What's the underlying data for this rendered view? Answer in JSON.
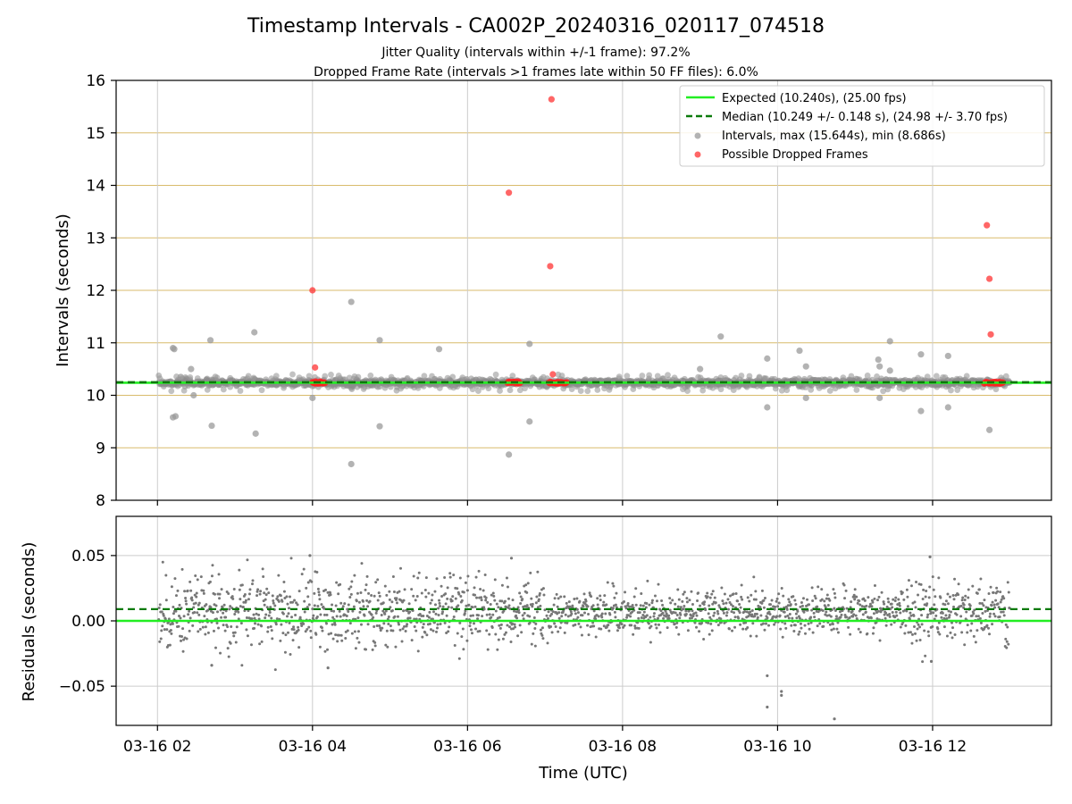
{
  "chart_data": [
    {
      "type": "scatter",
      "title": "Timestamp Intervals - CA002P_20240316_020117_074518",
      "subtitle_lines": [
        "Jitter Quality (intervals within +/-1 frame): 97.2%",
        "Dropped Frame Rate (intervals >1 frames late within 50 FF files): 6.0%"
      ],
      "ylabel": "Intervals (seconds)",
      "xlabel": "",
      "x_range": [
        "2024-03-16 01:28",
        "2024-03-16 13:32"
      ],
      "ylim": [
        8,
        16
      ],
      "yticks": [
        8,
        9,
        10,
        11,
        12,
        13,
        14,
        15,
        16
      ],
      "x_tick_labels": [
        "03-16 02",
        "03-16 04",
        "03-16 06",
        "03-16 08",
        "03-16 10",
        "03-16 12"
      ],
      "x_tick_times": [
        "2024-03-16 02:00",
        "2024-03-16 04:00",
        "2024-03-16 06:00",
        "2024-03-16 08:00",
        "2024-03-16 10:00",
        "2024-03-16 12:00"
      ],
      "grid": "on",
      "legend_position": "top-right",
      "series": [
        {
          "name": "Expected (10.240s), (25.00 fps)",
          "kind": "hline",
          "y": 10.24,
          "color": "#22ee22",
          "style": "solid"
        },
        {
          "name": "Median (10.249 +/- 0.148 s), (24.98 +/- 3.70 fps)",
          "kind": "hline",
          "y": 10.249,
          "color": "#0a7a0a",
          "style": "dashed"
        },
        {
          "name": "Intervals, max (15.644s), min (8.686s)",
          "kind": "scatter",
          "color": "#999999",
          "baseline": 10.24,
          "outliers": [
            {
              "x": "2024-03-16 02:12",
              "y": 10.9
            },
            {
              "x": "2024-03-16 02:13",
              "y": 10.88
            },
            {
              "x": "2024-03-16 02:12",
              "y": 9.58
            },
            {
              "x": "2024-03-16 02:14",
              "y": 9.6
            },
            {
              "x": "2024-03-16 02:18",
              "y": 10.35
            },
            {
              "x": "2024-03-16 02:26",
              "y": 10.5
            },
            {
              "x": "2024-03-16 02:28",
              "y": 10.0
            },
            {
              "x": "2024-03-16 02:41",
              "y": 11.05
            },
            {
              "x": "2024-03-16 02:42",
              "y": 9.42
            },
            {
              "x": "2024-03-16 03:15",
              "y": 11.2
            },
            {
              "x": "2024-03-16 03:16",
              "y": 9.27
            },
            {
              "x": "2024-03-16 04:00",
              "y": 9.95
            },
            {
              "x": "2024-03-16 04:30",
              "y": 11.78
            },
            {
              "x": "2024-03-16 04:30",
              "y": 8.69
            },
            {
              "x": "2024-03-16 04:52",
              "y": 11.05
            },
            {
              "x": "2024-03-16 04:52",
              "y": 9.41
            },
            {
              "x": "2024-03-16 05:38",
              "y": 10.88
            },
            {
              "x": "2024-03-16 06:32",
              "y": 8.87
            },
            {
              "x": "2024-03-16 06:48",
              "y": 10.98
            },
            {
              "x": "2024-03-16 06:48",
              "y": 9.5
            },
            {
              "x": "2024-03-16 09:00",
              "y": 10.5
            },
            {
              "x": "2024-03-16 09:16",
              "y": 11.12
            },
            {
              "x": "2024-03-16 09:52",
              "y": 10.7
            },
            {
              "x": "2024-03-16 09:52",
              "y": 9.77
            },
            {
              "x": "2024-03-16 10:17",
              "y": 10.85
            },
            {
              "x": "2024-03-16 10:22",
              "y": 10.55
            },
            {
              "x": "2024-03-16 10:22",
              "y": 9.95
            },
            {
              "x": "2024-03-16 11:18",
              "y": 10.68
            },
            {
              "x": "2024-03-16 11:19",
              "y": 10.55
            },
            {
              "x": "2024-03-16 11:19",
              "y": 9.95
            },
            {
              "x": "2024-03-16 11:27",
              "y": 11.03
            },
            {
              "x": "2024-03-16 11:27",
              "y": 10.47
            },
            {
              "x": "2024-03-16 11:51",
              "y": 10.78
            },
            {
              "x": "2024-03-16 11:51",
              "y": 9.7
            },
            {
              "x": "2024-03-16 12:12",
              "y": 10.75
            },
            {
              "x": "2024-03-16 12:12",
              "y": 9.77
            },
            {
              "x": "2024-03-16 12:44",
              "y": 9.34
            }
          ]
        },
        {
          "name": "Possible Dropped Frames",
          "kind": "scatter",
          "color": "#ff3333",
          "points": [
            {
              "x": "2024-03-16 04:00",
              "y": 12.0
            },
            {
              "x": "2024-03-16 04:02",
              "y": 10.53
            },
            {
              "x": "2024-03-16 06:32",
              "y": 13.86
            },
            {
              "x": "2024-03-16 07:05",
              "y": 15.64
            },
            {
              "x": "2024-03-16 07:04",
              "y": 12.46
            },
            {
              "x": "2024-03-16 07:06",
              "y": 10.4
            },
            {
              "x": "2024-03-16 12:42",
              "y": 13.24
            },
            {
              "x": "2024-03-16 12:44",
              "y": 12.22
            },
            {
              "x": "2024-03-16 12:45",
              "y": 11.16
            }
          ],
          "baseline_clusters": [
            {
              "start": "2024-03-16 04:00",
              "end": "2024-03-16 04:10",
              "y": 10.24
            },
            {
              "start": "2024-03-16 06:31",
              "end": "2024-03-16 06:41",
              "y": 10.24
            },
            {
              "start": "2024-03-16 07:03",
              "end": "2024-03-16 07:17",
              "y": 10.24
            },
            {
              "start": "2024-03-16 12:40",
              "end": "2024-03-16 12:55",
              "y": 10.24
            }
          ]
        }
      ]
    },
    {
      "type": "scatter",
      "title": "",
      "xlabel": "Time (UTC)",
      "ylabel": "Residuals (seconds)",
      "x_range": [
        "2024-03-16 01:28",
        "2024-03-16 13:32"
      ],
      "ylim": [
        -0.08,
        0.08
      ],
      "yticks": [
        -0.05,
        0.0,
        0.05
      ],
      "ytick_labels": [
        "−0.05",
        "0.00",
        "0.05"
      ],
      "x_tick_labels": [
        "03-16 02",
        "03-16 04",
        "03-16 06",
        "03-16 08",
        "03-16 10",
        "03-16 12"
      ],
      "x_tick_times": [
        "2024-03-16 02:00",
        "2024-03-16 04:00",
        "2024-03-16 06:00",
        "2024-03-16 08:00",
        "2024-03-16 10:00",
        "2024-03-16 12:00"
      ],
      "grid": "on",
      "series": [
        {
          "kind": "hline",
          "y": 0.0,
          "color": "#22ee22",
          "style": "solid"
        },
        {
          "kind": "hline",
          "y": 0.009,
          "color": "#0a7a0a",
          "style": "dashed"
        },
        {
          "kind": "scatter",
          "color": "#777777",
          "x_start": "2024-03-16 02:01",
          "x_end": "2024-03-16 13:00",
          "center": 0.007,
          "spread_sections": [
            {
              "start": "2024-03-16 02:01",
              "end": "2024-03-16 07:00",
              "spread": 0.014
            },
            {
              "start": "2024-03-16 07:00",
              "end": "2024-03-16 11:40",
              "spread": 0.008
            },
            {
              "start": "2024-03-16 11:40",
              "end": "2024-03-16 13:00",
              "spread": 0.012
            }
          ],
          "outliers": [
            {
              "x": "2024-03-16 03:58",
              "y": 0.05
            },
            {
              "x": "2024-03-16 04:12",
              "y": -0.036
            },
            {
              "x": "2024-03-16 06:34",
              "y": 0.048
            },
            {
              "x": "2024-03-16 09:52",
              "y": -0.042
            },
            {
              "x": "2024-03-16 09:52",
              "y": -0.066
            },
            {
              "x": "2024-03-16 10:03",
              "y": -0.054
            },
            {
              "x": "2024-03-16 10:03",
              "y": -0.057
            },
            {
              "x": "2024-03-16 10:44",
              "y": -0.075
            },
            {
              "x": "2024-03-16 11:58",
              "y": 0.049
            },
            {
              "x": "2024-03-16 11:59",
              "y": -0.031
            },
            {
              "x": "2024-03-16 02:42",
              "y": -0.034
            }
          ]
        }
      ]
    }
  ]
}
